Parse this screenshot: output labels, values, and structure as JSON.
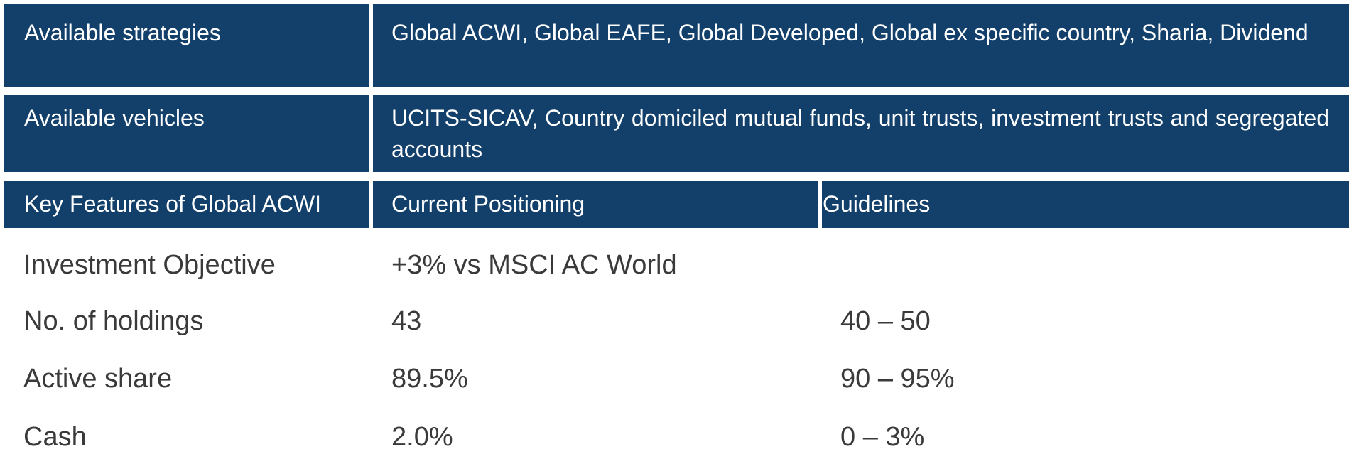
{
  "colors": {
    "header_background": "#13406b",
    "header_text": "#ffffff",
    "body_text": "#3a3a3a"
  },
  "strategies": {
    "label": "Available strategies",
    "value": "Global ACWI, Global EAFE, Global Developed, Global ex specific country, Sharia, Dividend"
  },
  "vehicles": {
    "label": "Available vehicles",
    "value": "UCITS-SICAV, Country domiciled mutual funds, unit trusts, investment trusts and segregated accounts"
  },
  "features_table": {
    "headers": [
      "Key Features of Global ACWI",
      "Current Positioning",
      "Guidelines"
    ],
    "rows": [
      {
        "feature": "Investment Objective",
        "current": "+3% vs MSCI AC World",
        "guideline": ""
      },
      {
        "feature": "No. of holdings",
        "current": "43",
        "guideline": "40 – 50"
      },
      {
        "feature": "Active share",
        "current": "89.5%",
        "guideline": "90 – 95%"
      },
      {
        "feature": "Cash",
        "current": "2.0%",
        "guideline": "0 – 3%"
      }
    ]
  }
}
